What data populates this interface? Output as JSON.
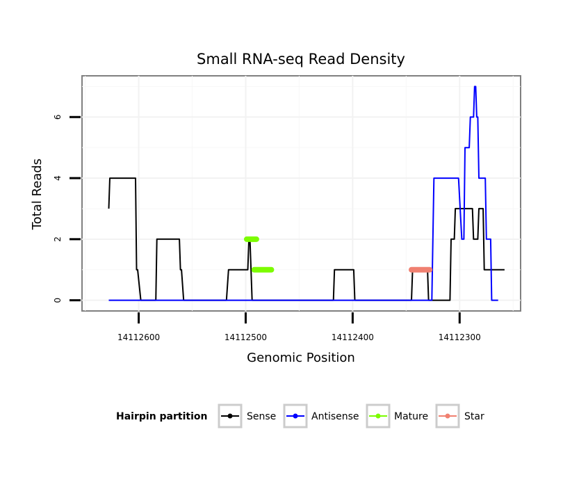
{
  "chart_data": {
    "type": "line",
    "title": "Small RNA-seq Read Density",
    "xlabel": "Genomic Position",
    "ylabel": "Total Reads",
    "x_reversed": true,
    "xlim": [
      14112653,
      14112243
    ],
    "ylim": [
      -0.35,
      7.35
    ],
    "x_ticks": [
      14112600,
      14112500,
      14112400,
      14112300
    ],
    "x_tick_labels": [
      "14112600",
      "14112500",
      "14112400",
      "14112300"
    ],
    "y_ticks": [
      0,
      2,
      4,
      6
    ],
    "y_tick_labels": [
      "0",
      "2",
      "4",
      "6"
    ],
    "grid": true,
    "legend": {
      "title": "Hairpin partition",
      "position": "bottom",
      "entries": [
        "Sense",
        "Antisense",
        "Mature",
        "Star"
      ]
    },
    "series": [
      {
        "name": "Sense",
        "color": "#000000",
        "x": [
          14112628,
          14112627,
          14112603,
          14112602,
          14112601,
          14112598,
          14112584,
          14112583,
          14112562,
          14112561,
          14112560,
          14112558,
          14112518,
          14112516,
          14112498,
          14112497,
          14112496,
          14112494,
          14112418,
          14112417,
          14112399,
          14112398,
          14112345,
          14112344,
          14112330,
          14112329,
          14112309,
          14112308,
          14112305,
          14112304,
          14112288,
          14112287,
          14112285,
          14112284,
          14112283,
          14112282,
          14112278,
          14112277,
          14112276,
          14112275,
          14112270,
          14112269,
          14112258
        ],
        "y": [
          3,
          4,
          4,
          1,
          1,
          0,
          0,
          2,
          2,
          1,
          1,
          0,
          0,
          1,
          1,
          2,
          2,
          0,
          0,
          1,
          1,
          0,
          0,
          1,
          1,
          0,
          0,
          2,
          2,
          3,
          3,
          2,
          2,
          2,
          2,
          3,
          3,
          1,
          1,
          1,
          1,
          1,
          1
        ]
      },
      {
        "name": "Antisense",
        "color": "#0000ff",
        "x": [
          14112628,
          14112326,
          14112324,
          14112322,
          14112301,
          14112298,
          14112296,
          14112295,
          14112291,
          14112290,
          14112287,
          14112286,
          14112285,
          14112284,
          14112283,
          14112282,
          14112280,
          14112279,
          14112276,
          14112275,
          14112271,
          14112270,
          14112265,
          14112264
        ],
        "y": [
          0,
          0,
          4,
          4,
          4,
          2,
          2,
          5,
          5,
          6,
          6,
          7,
          7,
          6,
          6,
          4,
          4,
          4,
          4,
          2,
          2,
          0,
          0,
          0
        ]
      },
      {
        "name": "Mature",
        "color": "#7cfc00",
        "segments": [
          {
            "x": [
              14112499,
              14112490
            ],
            "y": [
              2,
              2
            ]
          },
          {
            "x": [
              14112492,
              14112476
            ],
            "y": [
              1,
              1
            ]
          }
        ]
      },
      {
        "name": "Star",
        "color": "#f08070",
        "segments": [
          {
            "x": [
              14112345,
              14112328
            ],
            "y": [
              1,
              1
            ]
          }
        ]
      }
    ]
  }
}
